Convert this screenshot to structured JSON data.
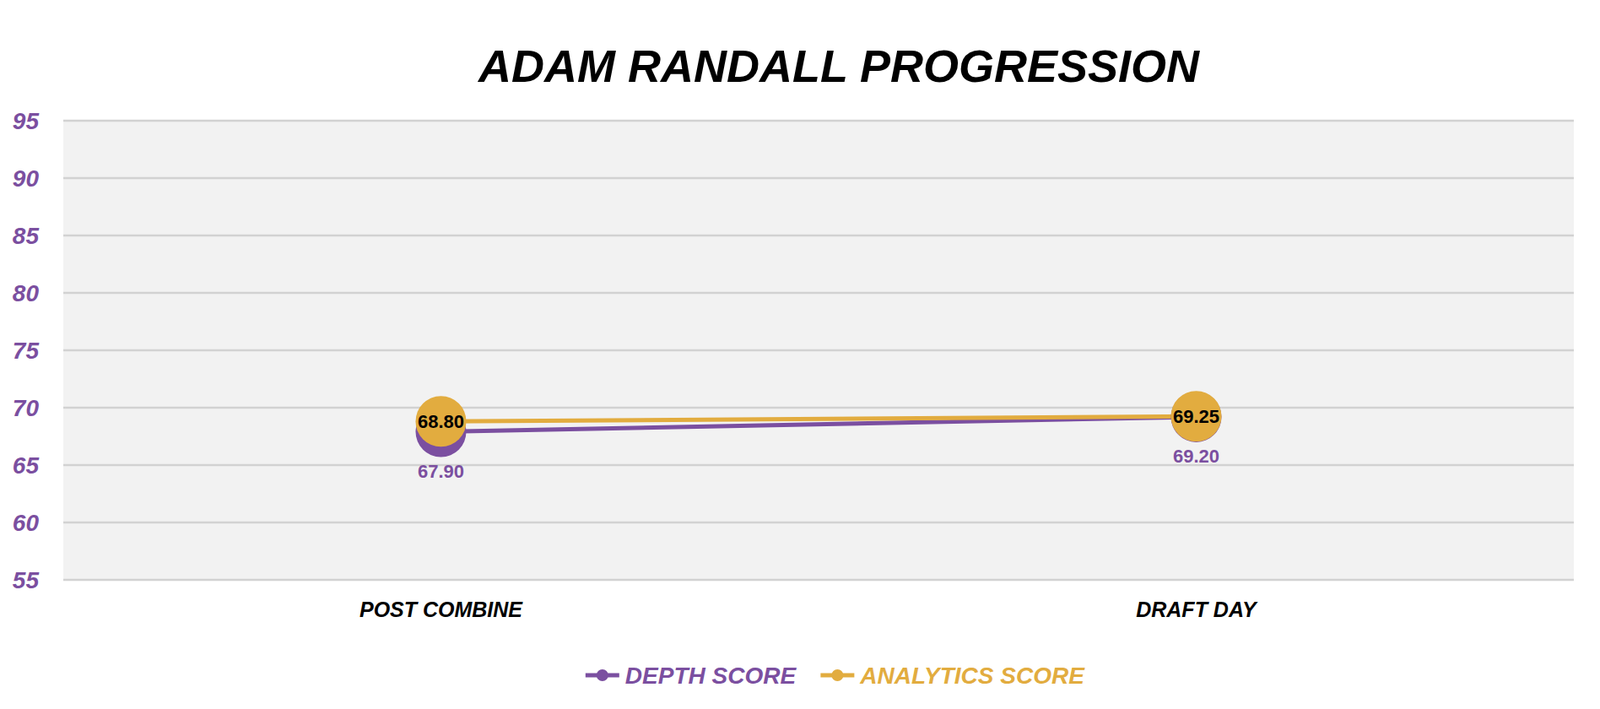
{
  "chart_data": {
    "type": "line",
    "title": "ADAM RANDALL PROGRESSION",
    "categories": [
      "POST COMBINE",
      "DRAFT DAY"
    ],
    "series": [
      {
        "name": "DEPTH SCORE",
        "color": "#7b4fa0",
        "values": [
          67.9,
          69.2
        ],
        "value_labels": [
          "67.90",
          "69.20"
        ]
      },
      {
        "name": "ANALYTICS SCORE",
        "color": "#e2ac3f",
        "values": [
          68.8,
          69.25
        ],
        "value_labels": [
          "68.80",
          "69.25"
        ]
      }
    ],
    "ylim": [
      55,
      95
    ],
    "yticks": [
      55,
      60,
      65,
      70,
      75,
      80,
      85,
      90,
      95
    ],
    "grid": true,
    "legend": "bottom",
    "data_labels": true,
    "marker": "circle"
  }
}
